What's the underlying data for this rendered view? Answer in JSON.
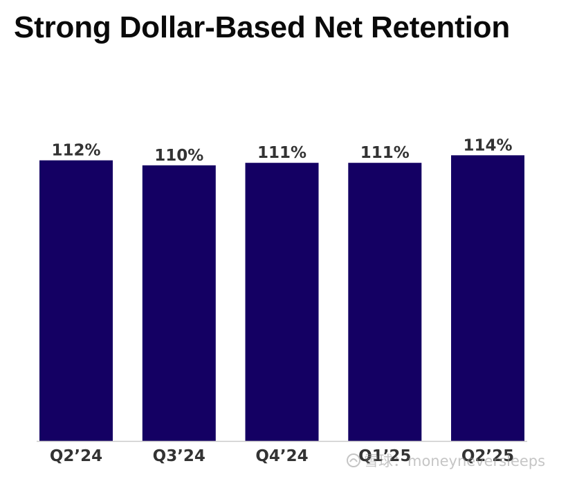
{
  "title": "Strong Dollar-Based Net Retention",
  "watermark": {
    "text": "雪球：moneyneversleeps"
  },
  "colors": {
    "bar": "#140063",
    "axis": "#c9c9c9",
    "label": "#333333"
  },
  "chart_data": {
    "type": "bar",
    "title": "Strong Dollar-Based Net Retention",
    "categories": [
      "Q2’24",
      "Q3’24",
      "Q4’24",
      "Q1’25",
      "Q2’25"
    ],
    "values": [
      112,
      110,
      111,
      111,
      114
    ],
    "value_labels": [
      "112%",
      "110%",
      "111%",
      "111%",
      "114%"
    ],
    "xlabel": "",
    "ylabel": "",
    "grid": false,
    "legend": "none"
  }
}
